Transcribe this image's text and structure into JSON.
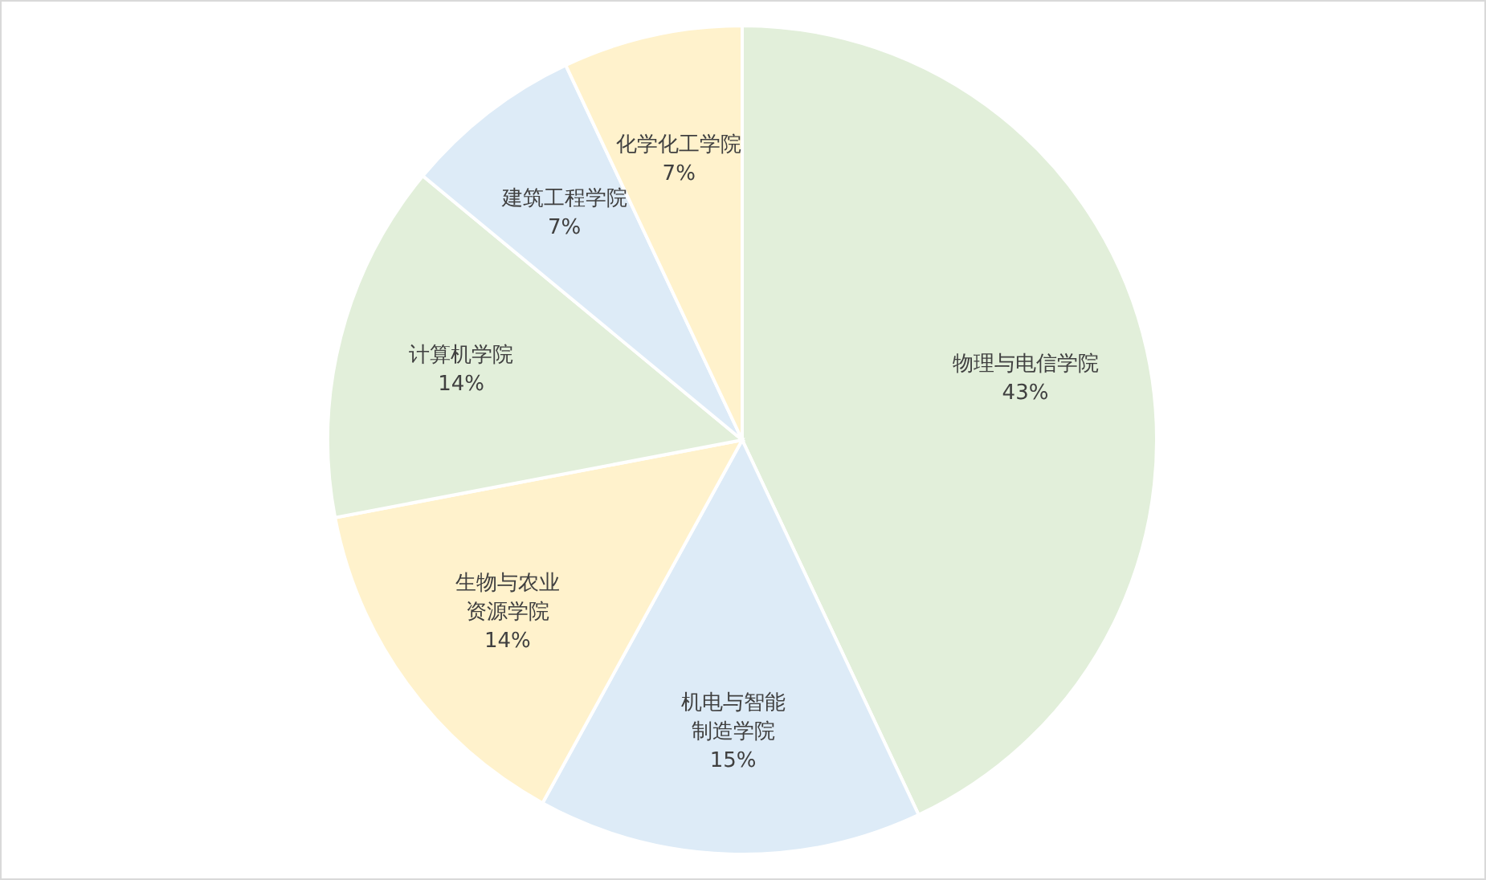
{
  "chart_data": {
    "type": "pie",
    "categories": [
      "物理与电信学院",
      "机电与智能制造学院",
      "生物与农业资源学院",
      "计算机学院",
      "建筑工程学院",
      "化学化工学院"
    ],
    "values": [
      43,
      15,
      14,
      14,
      7,
      7
    ],
    "colors": [
      "#e2efda",
      "#ddebf7",
      "#fff2cc",
      "#e2efda",
      "#ddebf7",
      "#fff2cc"
    ],
    "value_labels": [
      "43%",
      "15%",
      "14%",
      "14%",
      "7%",
      "7%"
    ]
  }
}
